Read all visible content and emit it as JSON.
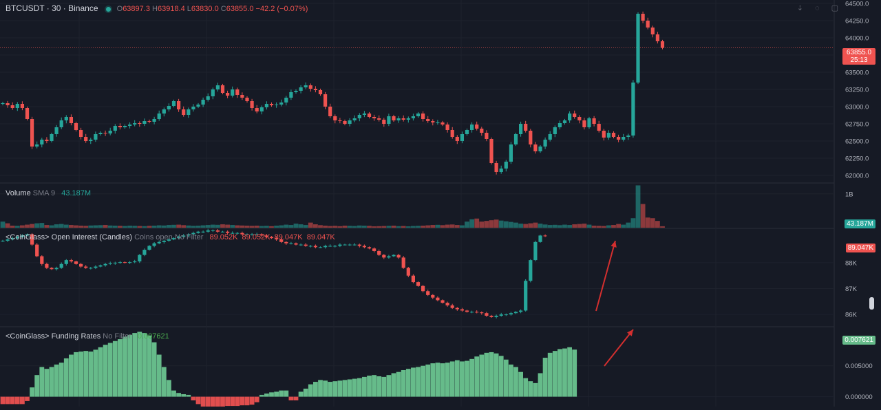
{
  "header": {
    "symbol": "BTCUSDT · 30 · Binance",
    "o_label": "O",
    "o_value": "63897.3",
    "h_label": "H",
    "h_value": "63918.4",
    "l_label": "L",
    "l_value": "63830.0",
    "c_label": "C",
    "c_value": "63855.0",
    "change": "−42.2 (−0.07%)",
    "tool_icons": [
      "arrow-down-icon",
      "eye-off-icon",
      "maximize-icon"
    ]
  },
  "colors": {
    "bg": "#161a25",
    "up": "#26a69a",
    "down": "#ef5350",
    "funding_up": "#66bb8a",
    "funding_down": "#e04e4e",
    "arrow": "#d32f2f"
  },
  "price_badge": {
    "value": "63855.0",
    "countdown": "25:13"
  },
  "volume_legend": {
    "name": "Volume",
    "sma": "SMA 9",
    "value": "43.187M",
    "badge": "43.187M"
  },
  "oi_legend": {
    "name": "<CoinGlass> Open Interest (Candles)",
    "params": "Coins open No Filter",
    "values": "89.052K  89.052K  89.047K  89.047K",
    "badge": "89.047K"
  },
  "fr_legend": {
    "name": "<CoinGlass> Funding Rates",
    "params": "No Filter",
    "value": "0.007621",
    "badge": "0.007621"
  },
  "chart_data": [
    {
      "type": "candlestick",
      "panel": "price",
      "title": "BTCUSDT · 30 · Binance",
      "ylim": [
        61900,
        64550
      ],
      "yticks": [
        62000,
        62250,
        62500,
        62750,
        63000,
        63250,
        63500,
        63750,
        64000,
        64250,
        64500
      ],
      "ytick_labels": [
        "62000.0",
        "62250.0",
        "62500.0",
        "62750.0",
        "63000.0",
        "63250.0",
        "63500.0",
        "63750.0",
        "64000.0",
        "64250.0",
        "64500.0"
      ],
      "last_price": 63855.0,
      "closes": [
        63050,
        63020,
        62980,
        63040,
        62980,
        62820,
        62420,
        62450,
        62520,
        62500,
        62600,
        62700,
        62800,
        62850,
        62760,
        62660,
        62560,
        62500,
        62520,
        62600,
        62620,
        62610,
        62650,
        62720,
        62700,
        62720,
        62740,
        62760,
        62750,
        62790,
        62780,
        62820,
        62900,
        62960,
        63010,
        63080,
        62960,
        62880,
        62960,
        63000,
        63030,
        63100,
        63150,
        63250,
        63310,
        63200,
        63160,
        63250,
        63170,
        63130,
        63080,
        62980,
        62930,
        62990,
        63040,
        63020,
        63030,
        63060,
        63130,
        63210,
        63230,
        63280,
        63310,
        63260,
        63240,
        63180,
        63000,
        62860,
        62800,
        62790,
        62750,
        62800,
        62830,
        62880,
        62900,
        62850,
        62830,
        62810,
        62750,
        62860,
        62800,
        62830,
        62810,
        62830,
        62860,
        62900,
        62820,
        62790,
        62770,
        62770,
        62740,
        62660,
        62560,
        62500,
        62600,
        62660,
        62740,
        62680,
        62620,
        62530,
        62180,
        62050,
        62100,
        62200,
        62450,
        62600,
        62750,
        62650,
        62450,
        62350,
        62420,
        62520,
        62600,
        62700,
        62760,
        62800,
        62900,
        62850,
        62800,
        62700,
        62830,
        62750,
        62650,
        62550,
        62620,
        62560,
        62520,
        62560,
        62580,
        63350,
        64350,
        64250,
        64150,
        64050,
        63950,
        63855
      ]
    },
    {
      "type": "bar",
      "panel": "volume",
      "series": [
        {
          "name": "Volume"
        }
      ],
      "ylim": [
        0,
        1300
      ],
      "yticks": [
        1000
      ],
      "ytick_labels": [
        "1B"
      ],
      "values": [
        180,
        130,
        60,
        55,
        70,
        90,
        110,
        130,
        140,
        80,
        70,
        100,
        110,
        90,
        80,
        70,
        60,
        55,
        65,
        70,
        75,
        80,
        65,
        60,
        55,
        50,
        60,
        55,
        50,
        45,
        55,
        60,
        70,
        65,
        80,
        85,
        90,
        75,
        65,
        55,
        60,
        70,
        80,
        90,
        85,
        100,
        90,
        80,
        70,
        65,
        60,
        55,
        60,
        50,
        55,
        45,
        60,
        70,
        90,
        80,
        120,
        100,
        80,
        150,
        100,
        75,
        60,
        50,
        55,
        45,
        60,
        55,
        50,
        65,
        60,
        55,
        40,
        45,
        50,
        55,
        60,
        45,
        50,
        40,
        50,
        55,
        60,
        70,
        80,
        85,
        75,
        90,
        95,
        80,
        70,
        180,
        250,
        270,
        180,
        200,
        220,
        240,
        210,
        190,
        170,
        150,
        120,
        110,
        130,
        150,
        120,
        95,
        80,
        85,
        75,
        90,
        80,
        100,
        110,
        120,
        90,
        60,
        55,
        50,
        70,
        80,
        110,
        90,
        150,
        280,
        1250,
        700,
        300,
        280,
        200,
        43
      ]
    },
    {
      "type": "candlestick",
      "panel": "open_interest",
      "series": [
        {
          "name": "<CoinGlass> Open Interest (Candles)"
        }
      ],
      "ylim": [
        85550,
        89300
      ],
      "yticks": [
        86000,
        87000,
        88000
      ],
      "ytick_labels": [
        "86K",
        "87K",
        "88K"
      ],
      "closes": [
        88850,
        88900,
        88950,
        89000,
        89050,
        89100,
        88700,
        88250,
        87950,
        87800,
        87750,
        87800,
        87950,
        88100,
        88050,
        87950,
        87850,
        87800,
        87800,
        87850,
        87900,
        87950,
        87980,
        88000,
        88020,
        88000,
        88020,
        88050,
        88300,
        88500,
        88650,
        88750,
        88800,
        88850,
        88900,
        88950,
        89000,
        89050,
        89100,
        89150,
        89200,
        89200,
        89250,
        89250,
        89200,
        89200,
        89150,
        89150,
        89150,
        89100,
        89100,
        89100,
        89100,
        89050,
        89000,
        88950,
        88900,
        88800,
        88750,
        88750,
        88700,
        88700,
        88650,
        88650,
        88600,
        88600,
        88650,
        88650,
        88650,
        88700,
        88700,
        88700,
        88700,
        88650,
        88600,
        88550,
        88450,
        88300,
        88200,
        88250,
        88300,
        88200,
        87800,
        87500,
        87250,
        87100,
        86900,
        86750,
        86650,
        86550,
        86450,
        86350,
        86250,
        86200,
        86150,
        86100,
        86100,
        86080,
        86050,
        85950,
        85900,
        85950,
        86000,
        86000,
        86050,
        86100,
        86150,
        87300,
        88100,
        88800,
        89050,
        89047
      ]
    },
    {
      "type": "bar",
      "panel": "funding_rates",
      "series": [
        {
          "name": "<CoinGlass> Funding Rates"
        }
      ],
      "ylim": [
        -0.0016,
        0.0112
      ],
      "yticks": [
        0,
        0.005
      ],
      "ytick_labels": [
        "0.000000",
        "0.005000"
      ],
      "values": [
        -0.0012,
        -0.0012,
        -0.0012,
        -0.0012,
        -0.0012,
        -0.0007,
        0.0015,
        0.0035,
        0.0048,
        0.0045,
        0.0048,
        0.0052,
        0.0055,
        0.0062,
        0.0068,
        0.0072,
        0.0073,
        0.0074,
        0.0073,
        0.0076,
        0.008,
        0.0084,
        0.0087,
        0.009,
        0.0093,
        0.0097,
        0.01,
        0.0103,
        0.0105,
        0.0103,
        0.0099,
        0.0088,
        0.0068,
        0.0048,
        0.0027,
        0.001,
        0.0006,
        0.0004,
        0.0003,
        -0.0006,
        -0.0012,
        -0.0016,
        -0.0016,
        -0.0016,
        -0.0016,
        -0.0016,
        -0.0015,
        -0.0015,
        -0.0015,
        -0.0014,
        -0.0014,
        -0.0013,
        -0.0009,
        0.0003,
        0.0005,
        0.0007,
        0.0008,
        0.001,
        0.001,
        -0.0006,
        -0.0006,
        0.0008,
        0.0013,
        0.002,
        0.0024,
        0.0027,
        0.0026,
        0.0024,
        0.0025,
        0.0026,
        0.0027,
        0.0028,
        0.0029,
        0.003,
        0.0032,
        0.0034,
        0.0035,
        0.0033,
        0.0032,
        0.0035,
        0.0038,
        0.004,
        0.0043,
        0.0045,
        0.0047,
        0.0048,
        0.005,
        0.0052,
        0.0054,
        0.0055,
        0.0054,
        0.0055,
        0.0057,
        0.0059,
        0.0057,
        0.0058,
        0.0061,
        0.0065,
        0.0068,
        0.0071,
        0.0072,
        0.007,
        0.0066,
        0.006,
        0.0052,
        0.0048,
        0.004,
        0.003,
        0.0025,
        0.0022,
        0.0038,
        0.0063,
        0.0071,
        0.0074,
        0.0077,
        0.0078,
        0.008,
        0.00762
      ]
    }
  ]
}
